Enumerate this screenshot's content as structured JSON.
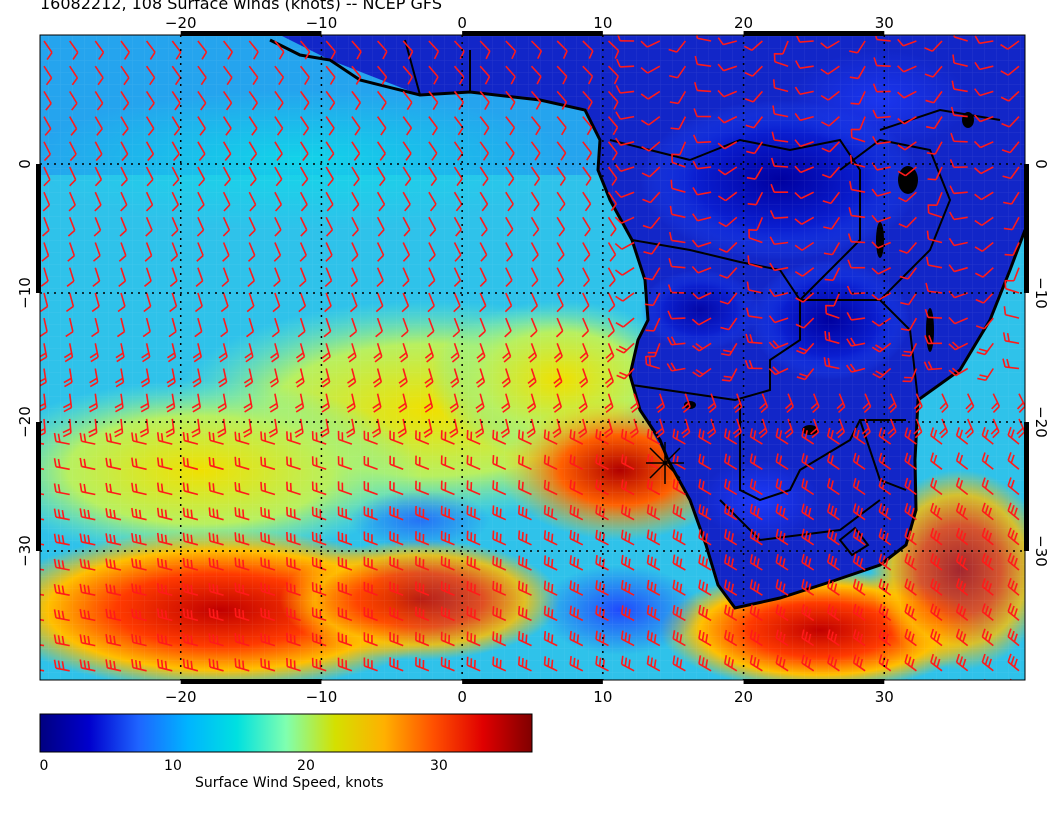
{
  "title": "16082212, 108 Surface winds (knots) -- NCEP GFS",
  "map": {
    "lon_range": [
      -30,
      40
    ],
    "lat_range": [
      -40,
      10
    ],
    "lon_ticks": [
      "−20",
      "−10",
      "0",
      "10",
      "20",
      "30"
    ],
    "lat_ticks": [
      "0",
      "−10",
      "−20",
      "−30"
    ],
    "gridlines": "dotted",
    "barb_color": "#ff1a1a",
    "border_color": "#000000",
    "marker": "✶"
  },
  "colorbar": {
    "title": "Surface Wind Speed, knots",
    "ticks": [
      "0",
      "10",
      "20",
      "30"
    ],
    "range": [
      0,
      37
    ],
    "colors": [
      "#000080",
      "#0000cd",
      "#1e64ff",
      "#00b4ff",
      "#00e0e0",
      "#7fffb0",
      "#d4e000",
      "#ffb000",
      "#ff5000",
      "#e00000",
      "#800000"
    ]
  }
}
